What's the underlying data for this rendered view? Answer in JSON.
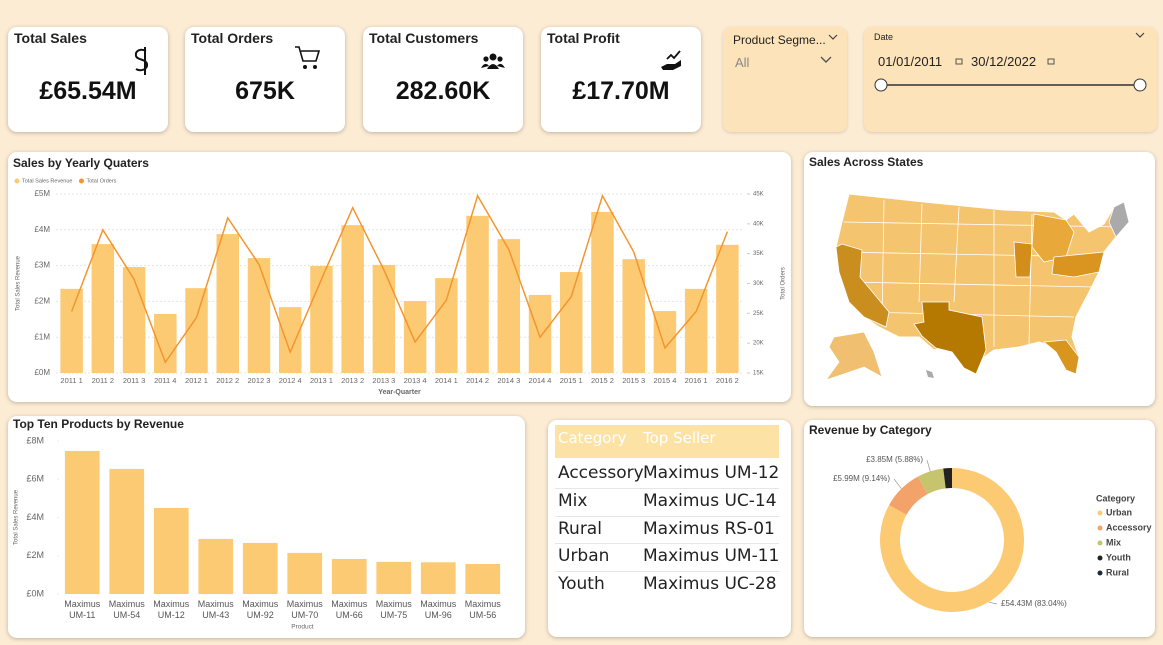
{
  "kpis": [
    {
      "title": "Total Sales",
      "value": "£65.54M"
    },
    {
      "title": "Total Orders",
      "value": "675K"
    },
    {
      "title": "Total Customers",
      "value": "282.60K"
    },
    {
      "title": "Total Profit",
      "value": "£17.70M"
    }
  ],
  "slicers": {
    "product_segment": {
      "label": "Product Segme...",
      "value": "All"
    },
    "date": {
      "label": "Date",
      "start": "01/01/2011",
      "end": "30/12/2022"
    }
  },
  "map": {
    "title": "Sales Across States"
  },
  "table": {
    "columns": [
      "Category",
      "Top Seller"
    ],
    "rows": [
      [
        "Accessory",
        "Maximus UM-12"
      ],
      [
        "Mix",
        "Maximus UC-14"
      ],
      [
        "Rural",
        "Maximus RS-01"
      ],
      [
        "Urban",
        "Maximus UM-11"
      ],
      [
        "Youth",
        "Maximus UC-28"
      ]
    ]
  },
  "chart_data": [
    {
      "type": "bar",
      "title": "Sales by Yearly Quaters",
      "categories": [
        "2011 1",
        "2011 2",
        "2011 3",
        "2011 4",
        "2012 1",
        "2012 2",
        "2012 3",
        "2012 4",
        "2013 1",
        "2013 2",
        "2013 3",
        "2013 4",
        "2014 1",
        "2014 2",
        "2014 3",
        "2014 4",
        "2015 1",
        "2015 2",
        "2015 3",
        "2015 4",
        "2016 1",
        "2016 2"
      ],
      "series": [
        {
          "name": "Total Sales Revenue",
          "type": "bar",
          "color": "#fdca74",
          "values": [
            2350000,
            3600000,
            2960000,
            1650000,
            2370000,
            3880000,
            3210000,
            1840000,
            2990000,
            4130000,
            3020000,
            2010000,
            2650000,
            4390000,
            3740000,
            2180000,
            2820000,
            4500000,
            3180000,
            1730000,
            2350000,
            3580000
          ]
        },
        {
          "name": "Total Orders",
          "type": "line",
          "axis": "y2",
          "color": "#f4952e",
          "values": [
            25300,
            39000,
            30700,
            16800,
            24300,
            41000,
            33200,
            18500,
            30700,
            42700,
            32300,
            20200,
            27200,
            44700,
            35700,
            21000,
            27800,
            44700,
            35300,
            19200,
            25300,
            38700
          ]
        }
      ],
      "ylim": [
        0,
        5000000
      ],
      "yticks": [
        {
          "value": 0,
          "label": "£0M"
        },
        {
          "value": 1000000,
          "label": "£1M"
        },
        {
          "value": 2000000,
          "label": "£2M"
        },
        {
          "value": 3000000,
          "label": "£3M"
        },
        {
          "value": 4000000,
          "label": "£4M"
        },
        {
          "value": 5000000,
          "label": "£5M"
        }
      ],
      "y2lim": [
        15000,
        45000
      ],
      "y2ticks": [
        {
          "value": 15000,
          "label": "15K"
        },
        {
          "value": 20000,
          "label": "20K"
        },
        {
          "value": 25000,
          "label": "25K"
        },
        {
          "value": 30000,
          "label": "30K"
        },
        {
          "value": 35000,
          "label": "35K"
        },
        {
          "value": 40000,
          "label": "40K"
        },
        {
          "value": 45000,
          "label": "45K"
        }
      ],
      "xlabel": "Year-Quarter",
      "ylabel": "Total Sales Revenue",
      "y2label": "Total Orders",
      "grid": true
    },
    {
      "type": "bar",
      "title": "Top Ten Products by Revenue",
      "categories": [
        "Maximus UM-11",
        "Maximus UM-54",
        "Maximus UM-12",
        "Maximus UM-43",
        "Maximus UM-92",
        "Maximus UM-70",
        "Maximus UM-66",
        "Maximus UM-75",
        "Maximus UM-96",
        "Maximus UM-56"
      ],
      "values": [
        7480000,
        6540000,
        4500000,
        2880000,
        2670000,
        2150000,
        1830000,
        1680000,
        1660000,
        1570000
      ],
      "color": "#fdca74",
      "ylim": [
        0,
        8000000
      ],
      "yticks": [
        {
          "value": 0,
          "label": "£0M"
        },
        {
          "value": 2000000,
          "label": "£2M"
        },
        {
          "value": 4000000,
          "label": "£4M"
        },
        {
          "value": 6000000,
          "label": "£6M"
        },
        {
          "value": 8000000,
          "label": "£8M"
        }
      ],
      "xlabel": "Product",
      "ylabel": "Total Sales Revenue",
      "grid": false
    },
    {
      "type": "donut",
      "title": "Revenue by Category",
      "legend_title": "Category",
      "categories": [
        "Urban",
        "Accessory",
        "Mix",
        "Youth",
        "Rural"
      ],
      "values": [
        54430000,
        5990000,
        3850000,
        1270000,
        0
      ],
      "value_labels": [
        "£54.43M (83.04%)",
        "£5.99M (9.14%)",
        "£3.85M (5.88%)",
        null,
        null
      ],
      "colors": [
        "#fdca74",
        "#f3a26a",
        "#c7c46e",
        "#222222",
        "#1c2b3c"
      ]
    }
  ]
}
